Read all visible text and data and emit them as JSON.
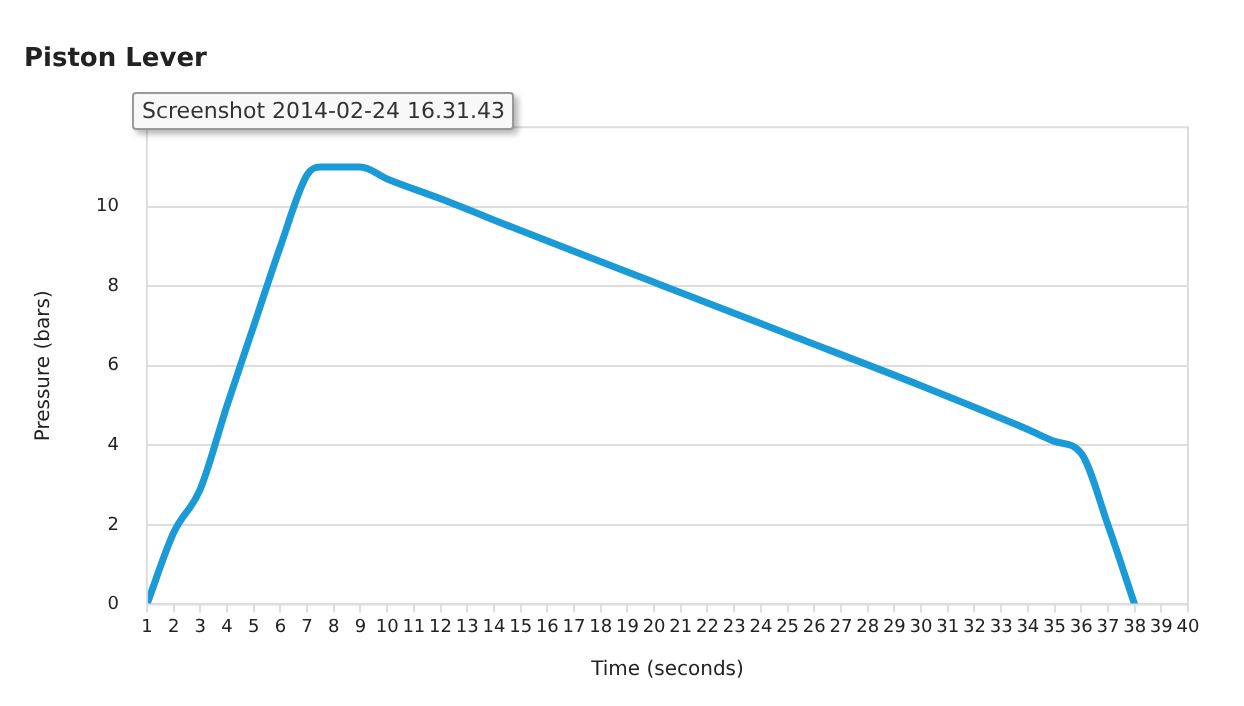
{
  "chart_data": {
    "type": "line",
    "title": "Piston Lever",
    "xlabel": "Time (seconds)",
    "ylabel": "Pressure (bars)",
    "annotations": [
      "Screenshot 2014-02-24 16.31.43"
    ],
    "x": [
      1,
      2,
      3,
      4,
      5,
      6,
      7,
      7.5,
      8,
      9,
      10,
      12,
      15,
      20,
      25,
      30,
      34,
      35,
      36,
      37,
      38
    ],
    "series": [
      {
        "color": "#1a9ad6",
        "values": [
          0,
          1.8,
          2.9,
          5,
          7,
          9,
          10.8,
          11,
          11,
          11,
          10.7,
          10.2,
          9.4,
          8.1,
          6.8,
          5.5,
          4.4,
          4.1,
          3.8,
          2,
          0
        ]
      }
    ],
    "xlim": [
      1,
      40
    ],
    "xticks": [
      1,
      2,
      3,
      4,
      5,
      6,
      7,
      8,
      9,
      10,
      11,
      12,
      13,
      14,
      15,
      16,
      17,
      18,
      19,
      20,
      21,
      22,
      23,
      24,
      25,
      26,
      27,
      28,
      29,
      30,
      31,
      32,
      33,
      34,
      35,
      36,
      37,
      38,
      39,
      40
    ],
    "ylim": [
      0,
      12
    ],
    "yticks": [
      0,
      2,
      4,
      6,
      8,
      10
    ],
    "grid": "y",
    "legend": false,
    "marker": "none",
    "line_style": "solid"
  }
}
